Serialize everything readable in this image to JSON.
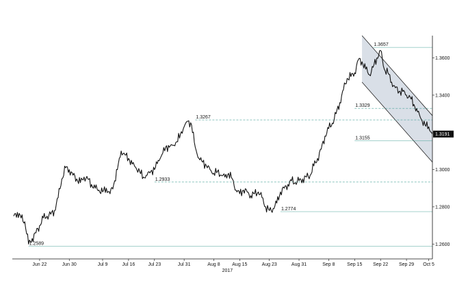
{
  "chart_data": {
    "type": "line",
    "title": "",
    "xlabel": "",
    "ylabel": "",
    "ylim": [
      1.252,
      1.372
    ],
    "grid": false,
    "x_ticks": [
      "Jun 22",
      "Jun 30",
      "Jul 9",
      "Jul 16",
      "Jul 23",
      "Jul 31",
      "Aug 8",
      "Aug 15",
      "Aug 23",
      "Aug 31",
      "Sep 8",
      "Sep 15",
      "Sep 22",
      "Sep 29",
      "Oct 5"
    ],
    "year_label": "2017",
    "y_ticks": [
      1.26,
      1.28,
      1.3,
      1.32,
      1.34,
      1.36
    ],
    "y_tick_labels": [
      "1.2600",
      "1.2800",
      "1.3000",
      "1.3200",
      "1.3400",
      "1.3600"
    ],
    "series": [
      {
        "x": [
          "Jun 15",
          "Jun 16",
          "Jun 17",
          "Jun 18",
          "Jun 19",
          "Jun 20",
          "Jun 21",
          "Jun 22",
          "Jun 23",
          "Jun 24",
          "Jun 25",
          "Jun 26",
          "Jun 27",
          "Jun 28",
          "Jun 29",
          "Jun 30",
          "Jul 1",
          "Jul 2",
          "Jul 3",
          "Jul 4",
          "Jul 5",
          "Jul 6",
          "Jul 7",
          "Jul 8",
          "Jul 9",
          "Jul 10",
          "Jul 11",
          "Jul 12",
          "Jul 13",
          "Jul 14",
          "Jul 15",
          "Jul 16",
          "Jul 17",
          "Jul 18",
          "Jul 19",
          "Jul 20",
          "Jul 21",
          "Jul 22",
          "Jul 23",
          "Jul 24",
          "Jul 25",
          "Jul 26",
          "Jul 27",
          "Jul 28",
          "Jul 29",
          "Jul 30",
          "Jul 31",
          "Aug 1",
          "Aug 2",
          "Aug 3",
          "Aug 4",
          "Aug 5",
          "Aug 6",
          "Aug 7",
          "Aug 8",
          "Aug 9",
          "Aug 10",
          "Aug 11",
          "Aug 12",
          "Aug 13",
          "Aug 14",
          "Aug 15",
          "Aug 16",
          "Aug 17",
          "Aug 18",
          "Aug 19",
          "Aug 20",
          "Aug 21",
          "Aug 22",
          "Aug 23",
          "Aug 24",
          "Aug 25",
          "Aug 26",
          "Aug 27",
          "Aug 28",
          "Aug 29",
          "Aug 30",
          "Aug 31",
          "Sep 1",
          "Sep 2",
          "Sep 3",
          "Sep 4",
          "Sep 5",
          "Sep 6",
          "Sep 7",
          "Sep 8",
          "Sep 9",
          "Sep 10",
          "Sep 11",
          "Sep 12",
          "Sep 13",
          "Sep 14",
          "Sep 15",
          "Sep 16",
          "Sep 17",
          "Sep 18",
          "Sep 19",
          "Sep 20",
          "Sep 21",
          "Sep 22",
          "Sep 23",
          "Sep 24",
          "Sep 25",
          "Sep 26",
          "Sep 27",
          "Sep 28",
          "Sep 29",
          "Sep 30",
          "Oct 1",
          "Oct 2",
          "Oct 3",
          "Oct 4",
          "Oct 5",
          "Oct 6"
        ],
        "values": [
          1.275,
          1.277,
          1.274,
          1.272,
          1.26,
          1.263,
          1.266,
          1.27,
          1.274,
          1.275,
          1.276,
          1.278,
          1.285,
          1.295,
          1.301,
          1.3,
          1.297,
          1.295,
          1.293,
          1.296,
          1.295,
          1.292,
          1.29,
          1.289,
          1.288,
          1.29,
          1.287,
          1.292,
          1.3,
          1.31,
          1.308,
          1.306,
          1.303,
          1.301,
          1.299,
          1.296,
          1.297,
          1.299,
          1.3,
          1.305,
          1.308,
          1.312,
          1.312,
          1.313,
          1.315,
          1.319,
          1.323,
          1.326,
          1.324,
          1.312,
          1.306,
          1.304,
          1.302,
          1.3,
          1.298,
          1.299,
          1.297,
          1.296,
          1.298,
          1.295,
          1.289,
          1.287,
          1.289,
          1.288,
          1.286,
          1.287,
          1.288,
          1.285,
          1.28,
          1.278,
          1.279,
          1.282,
          1.288,
          1.29,
          1.292,
          1.294,
          1.293,
          1.294,
          1.295,
          1.296,
          1.297,
          1.302,
          1.306,
          1.311,
          1.318,
          1.322,
          1.325,
          1.33,
          1.336,
          1.343,
          1.349,
          1.35,
          1.352,
          1.359,
          1.358,
          1.354,
          1.351,
          1.355,
          1.36,
          1.364,
          1.354,
          1.352,
          1.347,
          1.344,
          1.342,
          1.342,
          1.34,
          1.339,
          1.335,
          1.331,
          1.327,
          1.324,
          1.323,
          1.3191
        ]
      }
    ],
    "last_value": "1.3191",
    "annotations": [
      {
        "label": "1.3657",
        "x": "Sep 20",
        "y": 1.3657
      },
      {
        "label": "1.3329",
        "x": "Sep 15",
        "y": 1.3329
      },
      {
        "label": "1.3267",
        "x": "Aug 3",
        "y": 1.3267
      },
      {
        "label": "1.3155",
        "x": "Sep 15",
        "y": 1.3155
      },
      {
        "label": "1.2933",
        "x": "Jul 23",
        "y": 1.2933
      },
      {
        "label": "1.2774",
        "x": "Aug 26",
        "y": 1.2774
      },
      {
        "label": "1.2589",
        "x": "Jun 19",
        "y": 1.2589
      }
    ],
    "channel": {
      "upper": [
        {
          "x": "Sep 17",
          "y": 1.372
        },
        {
          "x": "Oct 6",
          "y": 1.329
        }
      ],
      "lower": [
        {
          "x": "Sep 17",
          "y": 1.347
        },
        {
          "x": "Oct 6",
          "y": 1.304
        }
      ]
    },
    "colors": {
      "line": "#111111",
      "level": "#4aa39a",
      "channel_fill": "#d9dfe7",
      "channel_edge": "#222222",
      "axis": "#111111",
      "last_box": "#111111"
    }
  }
}
